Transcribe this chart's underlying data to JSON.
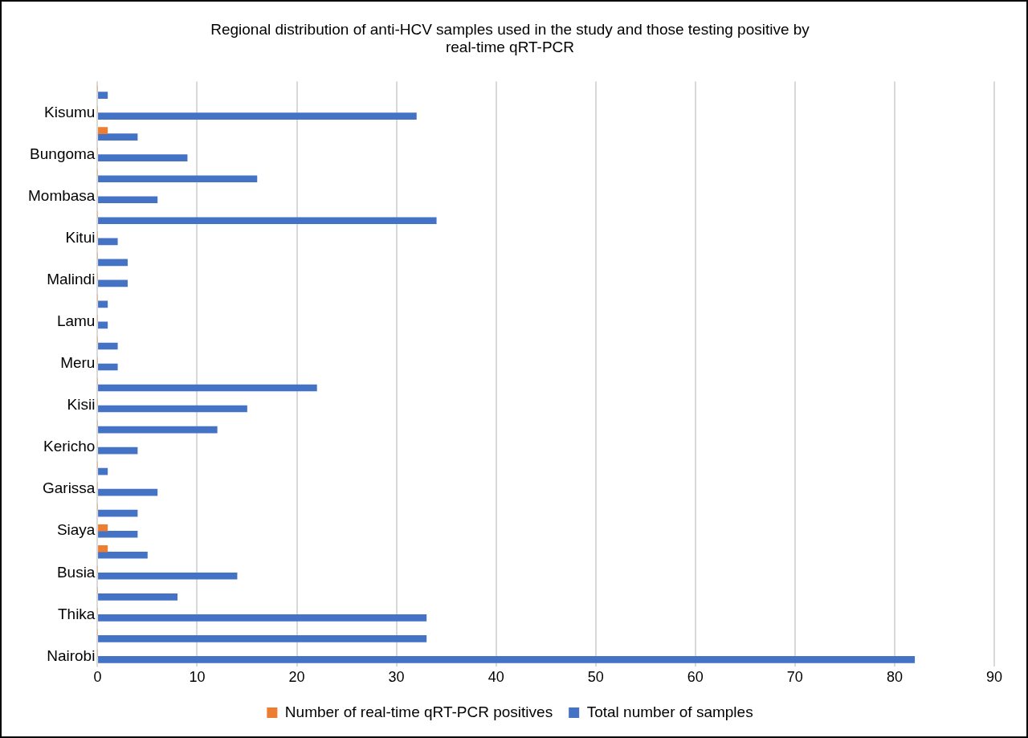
{
  "chart_data": {
    "type": "bar",
    "orientation": "horizontal",
    "title": "Regional distribution of anti-HCV samples used in the study and those testing positive by real-time qRT-PCR",
    "categories": [
      null,
      "Kisumu",
      null,
      "Bungoma",
      null,
      "Mombasa",
      null,
      "Kitui",
      null,
      "Malindi",
      null,
      "Lamu",
      null,
      "Meru",
      null,
      "Kisii",
      null,
      "Kericho",
      null,
      "Garissa",
      null,
      "Siaya",
      null,
      "Busia",
      null,
      "Thika",
      null,
      "Nairobi"
    ],
    "series": [
      {
        "name": "Number of real-time qRT-PCR positives",
        "color": "#ed7d31",
        "values": [
          0,
          0,
          1,
          0,
          0,
          0,
          0,
          0,
          0,
          0,
          0,
          0,
          0,
          0,
          0,
          0,
          0,
          0,
          0,
          0,
          0,
          1,
          1,
          0,
          0,
          0,
          0,
          0
        ]
      },
      {
        "name": "Total number of samples",
        "color": "#4472c4",
        "values": [
          1,
          32,
          4,
          9,
          16,
          6,
          34,
          2,
          3,
          3,
          1,
          1,
          2,
          2,
          22,
          15,
          12,
          4,
          1,
          6,
          4,
          4,
          5,
          14,
          8,
          33,
          33,
          82
        ]
      }
    ],
    "xlim": [
      0,
      90
    ],
    "xticks": [
      0,
      10,
      20,
      30,
      40,
      50,
      60,
      70,
      80,
      90
    ],
    "grid": "x",
    "legend": "bottom"
  }
}
